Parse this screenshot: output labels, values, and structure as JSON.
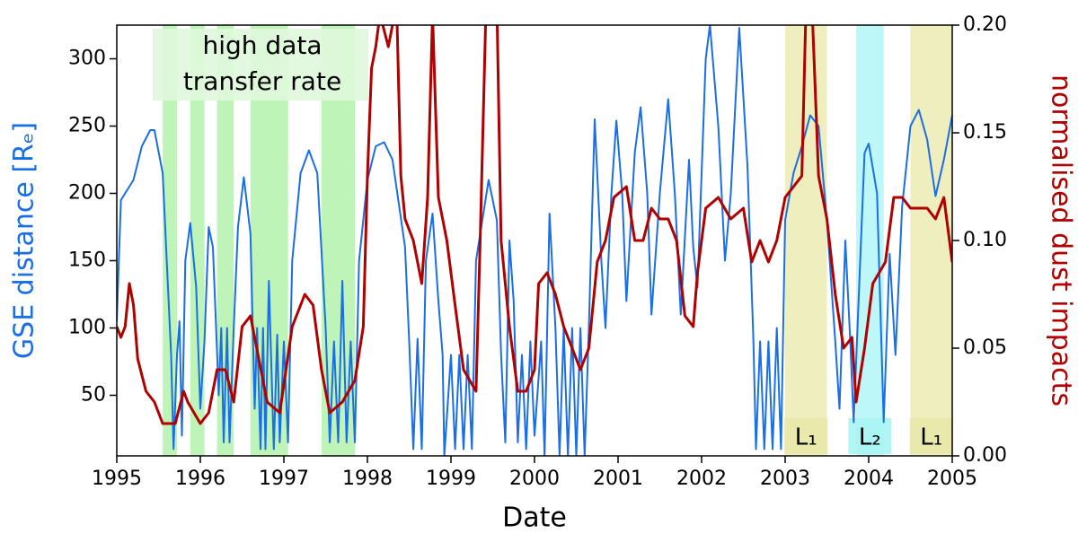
{
  "chart_data": {
    "type": "line",
    "xlabel": "Date",
    "ylabel": "GSE distance [Rₑ]",
    "y2label": "normalised dust impacts",
    "xlim": [
      1995,
      2005
    ],
    "xticks": [
      1995,
      1996,
      1997,
      1998,
      1999,
      2000,
      2001,
      2002,
      2003,
      2004,
      2005
    ],
    "ylim": [
      5,
      325
    ],
    "yticks": [
      50,
      100,
      150,
      200,
      250,
      300
    ],
    "y2lim": [
      0,
      0.2
    ],
    "y2ticks": [
      {
        "value": 0,
        "label": "0.00"
      },
      {
        "value": 0.05,
        "label": "0.05"
      },
      {
        "value": 0.1,
        "label": "0.10"
      },
      {
        "value": 0.15,
        "label": "0.15"
      },
      {
        "value": 0.2,
        "label": "0.20"
      }
    ],
    "annotation": [
      "high data",
      "transfer rate"
    ],
    "regions": [
      {
        "x": [
          1995.55,
          1995.72
        ],
        "color": "#a8f0a0"
      },
      {
        "x": [
          1995.88,
          1996.05
        ],
        "color": "#a8f0a0"
      },
      {
        "x": [
          1996.2,
          1996.4
        ],
        "color": "#a8f0a0"
      },
      {
        "x": [
          1996.6,
          1997.05
        ],
        "color": "#a8f0a0"
      },
      {
        "x": [
          1997.45,
          1997.85
        ],
        "color": "#a8f0a0"
      },
      {
        "x": [
          2003.0,
          2003.5
        ],
        "color": "#e8e8a8",
        "label": "L₁"
      },
      {
        "x": [
          2003.85,
          2004.18
        ],
        "color": "#a8f4f4",
        "label": "L₂"
      },
      {
        "x": [
          2004.5,
          2005.0
        ],
        "color": "#e8e8a8",
        "label": "L₁"
      }
    ],
    "series": [
      {
        "name": "GSE distance",
        "color": "#1a6ee6",
        "axis": "y",
        "x": [
          1995.0,
          1995.05,
          1995.2,
          1995.3,
          1995.4,
          1995.45,
          1995.55,
          1995.62,
          1995.65,
          1995.68,
          1995.72,
          1995.75,
          1995.78,
          1995.82,
          1995.88,
          1995.95,
          1996.0,
          1996.05,
          1996.1,
          1996.15,
          1996.22,
          1996.25,
          1996.28,
          1996.32,
          1996.35,
          1996.4,
          1996.45,
          1996.52,
          1996.6,
          1996.65,
          1996.68,
          1996.72,
          1996.75,
          1996.78,
          1996.82,
          1996.88,
          1996.92,
          1996.95,
          1997.0,
          1997.05,
          1997.1,
          1997.2,
          1997.3,
          1997.4,
          1997.5,
          1997.55,
          1997.6,
          1997.65,
          1997.7,
          1997.75,
          1997.8,
          1997.85,
          1997.9,
          1998.0,
          1998.1,
          1998.2,
          1998.3,
          1998.45,
          1998.5,
          1998.55,
          1998.6,
          1998.65,
          1998.7,
          1998.78,
          1998.85,
          1998.9,
          1998.92,
          1999.0,
          1999.05,
          1999.1,
          1999.15,
          1999.2,
          1999.25,
          1999.3,
          1999.45,
          1999.55,
          1999.6,
          1999.65,
          1999.7,
          1999.75,
          1999.8,
          1999.85,
          1999.9,
          1999.95,
          2000.0,
          2000.08,
          2000.12,
          2000.18,
          2000.25,
          2000.3,
          2000.35,
          2000.4,
          2000.45,
          2000.5,
          2000.55,
          2000.6,
          2000.65,
          2000.72,
          2000.8,
          2000.85,
          2000.92,
          2000.98,
          2001.05,
          2001.1,
          2001.2,
          2001.27,
          2001.35,
          2001.4,
          2001.5,
          2001.6,
          2001.68,
          2001.75,
          2001.85,
          2001.9,
          2001.95,
          2002.05,
          2002.1,
          2002.2,
          2002.28,
          2002.35,
          2002.45,
          2002.55,
          2002.62,
          2002.65,
          2002.7,
          2002.75,
          2002.8,
          2002.85,
          2002.9,
          2002.95,
          2003.0,
          2003.1,
          2003.2,
          2003.3,
          2003.4,
          2003.5,
          2003.6,
          2003.65,
          2003.72,
          2003.78,
          2003.82,
          2003.95,
          2004.0,
          2004.1,
          2004.18,
          2004.25,
          2004.32,
          2004.4,
          2004.5,
          2004.6,
          2004.7,
          2004.8,
          2004.9,
          2005.0
        ],
        "values": [
          105,
          195,
          210,
          235,
          247,
          247,
          215,
          120,
          80,
          10,
          80,
          105,
          20,
          150,
          178,
          130,
          40,
          90,
          175,
          160,
          50,
          100,
          15,
          100,
          15,
          100,
          175,
          212,
          170,
          40,
          100,
          10,
          100,
          10,
          135,
          10,
          95,
          15,
          90,
          15,
          150,
          215,
          232,
          215,
          100,
          15,
          90,
          15,
          135,
          15,
          90,
          15,
          150,
          210,
          235,
          238,
          225,
          160,
          90,
          10,
          92,
          10,
          150,
          185,
          120,
          80,
          5,
          80,
          10,
          80,
          10,
          80,
          10,
          150,
          210,
          180,
          80,
          15,
          165,
          120,
          15,
          80,
          10,
          90,
          20,
          90,
          5,
          185,
          100,
          5,
          100,
          5,
          100,
          5,
          100,
          5,
          100,
          255,
          150,
          100,
          200,
          254,
          200,
          120,
          230,
          264,
          200,
          110,
          200,
          270,
          200,
          110,
          225,
          160,
          130,
          300,
          325,
          250,
          150,
          200,
          323,
          220,
          90,
          10,
          90,
          10,
          90,
          10,
          100,
          10,
          180,
          215,
          235,
          258,
          250,
          180,
          90,
          40,
          165,
          90,
          30,
          230,
          237,
          200,
          30,
          155,
          80,
          190,
          250,
          262,
          240,
          198,
          225,
          258
        ]
      },
      {
        "name": "normalised dust impacts",
        "color": "#b00000",
        "axis": "y2",
        "x": [
          1995.0,
          1995.05,
          1995.1,
          1995.15,
          1995.2,
          1995.25,
          1995.35,
          1995.45,
          1995.55,
          1995.7,
          1995.8,
          1995.85,
          1996.0,
          1996.1,
          1996.2,
          1996.3,
          1996.4,
          1996.5,
          1996.6,
          1996.7,
          1996.8,
          1996.95,
          1997.1,
          1997.25,
          1997.35,
          1997.45,
          1997.55,
          1997.7,
          1997.85,
          1997.95,
          1998.0,
          1998.05,
          1998.1,
          1998.15,
          1998.25,
          1998.35,
          1998.4,
          1998.45,
          1998.55,
          1998.65,
          1998.72,
          1998.78,
          1998.85,
          1998.95,
          1999.05,
          1999.15,
          1999.3,
          1999.35,
          1999.42,
          1999.55,
          1999.6,
          1999.7,
          1999.8,
          1999.9,
          2000.0,
          2000.05,
          2000.15,
          2000.25,
          2000.35,
          2000.45,
          2000.55,
          2000.65,
          2000.75,
          2000.85,
          2000.95,
          2001.1,
          2001.2,
          2001.3,
          2001.4,
          2001.5,
          2001.6,
          2001.7,
          2001.8,
          2001.9,
          2001.95,
          2002.05,
          2002.2,
          2002.35,
          2002.5,
          2002.6,
          2002.7,
          2002.8,
          2002.9,
          2003.0,
          2003.1,
          2003.2,
          2003.25,
          2003.32,
          2003.4,
          2003.5,
          2003.6,
          2003.7,
          2003.8,
          2003.85,
          2003.95,
          2004.05,
          2004.2,
          2004.3,
          2004.4,
          2004.5,
          2004.7,
          2004.8,
          2004.9,
          2005.0
        ],
        "values": [
          0.06,
          0.055,
          0.06,
          0.08,
          0.07,
          0.045,
          0.03,
          0.025,
          0.015,
          0.015,
          0.03,
          0.025,
          0.015,
          0.02,
          0.04,
          0.04,
          0.025,
          0.06,
          0.065,
          0.045,
          0.025,
          0.02,
          0.06,
          0.075,
          0.07,
          0.04,
          0.02,
          0.025,
          0.035,
          0.06,
          0.13,
          0.18,
          0.19,
          0.205,
          0.19,
          0.21,
          0.13,
          0.11,
          0.1,
          0.08,
          0.12,
          0.205,
          0.12,
          0.1,
          0.07,
          0.04,
          0.03,
          0.1,
          0.21,
          0.21,
          0.1,
          0.06,
          0.03,
          0.03,
          0.04,
          0.08,
          0.085,
          0.075,
          0.06,
          0.05,
          0.04,
          0.05,
          0.09,
          0.1,
          0.12,
          0.125,
          0.1,
          0.1,
          0.115,
          0.11,
          0.11,
          0.1,
          0.065,
          0.06,
          0.085,
          0.115,
          0.12,
          0.11,
          0.115,
          0.09,
          0.1,
          0.09,
          0.1,
          0.12,
          0.125,
          0.13,
          0.21,
          0.21,
          0.13,
          0.11,
          0.075,
          0.05,
          0.055,
          0.025,
          0.05,
          0.08,
          0.09,
          0.12,
          0.12,
          0.115,
          0.115,
          0.11,
          0.12,
          0.09
        ]
      }
    ]
  }
}
